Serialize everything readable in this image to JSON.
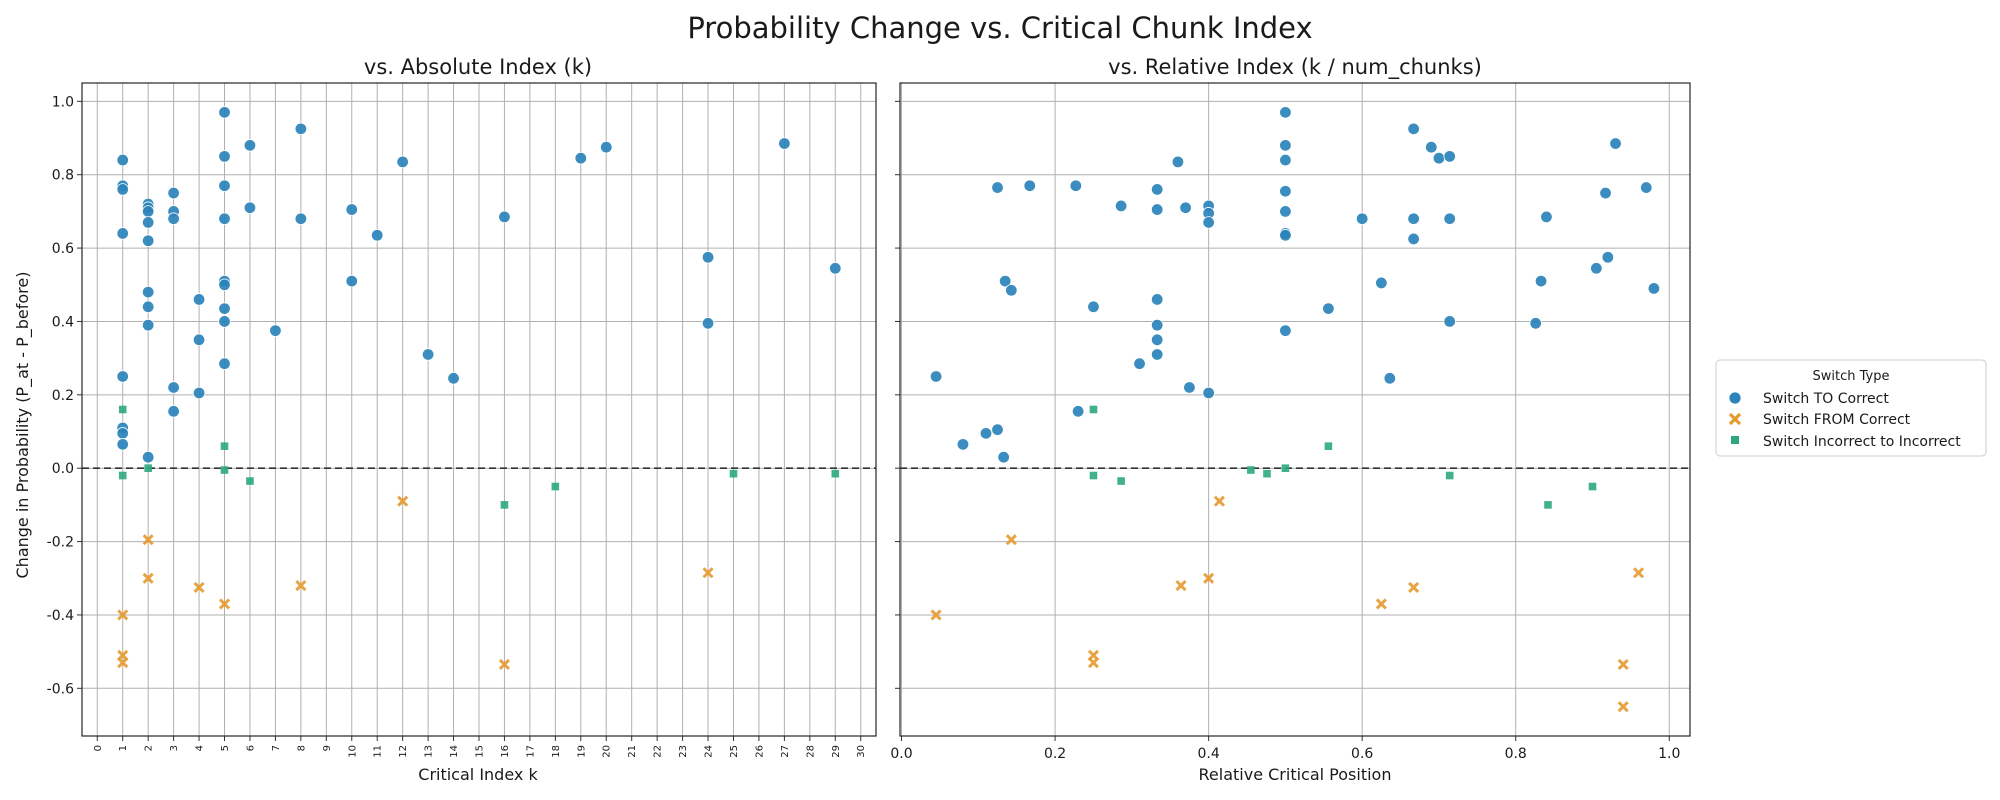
{
  "figure_title": "Probability Change vs. Critical Chunk Index",
  "legend": {
    "title": "Switch Type",
    "entries": [
      {
        "label": "Switch TO Correct",
        "marker": "circle",
        "color": "#2b83ba"
      },
      {
        "label": "Switch FROM Correct",
        "marker": "x",
        "color": "#e69a2e"
      },
      {
        "label": "Switch Incorrect to Incorrect",
        "marker": "square",
        "color": "#2ca87f"
      }
    ]
  },
  "chart_data": [
    {
      "type": "scatter",
      "title": "vs. Absolute Index (k)",
      "xlabel": "Critical Index k",
      "ylabel": "Change in Probability (P_at - P_before)",
      "xlim": [
        -0.6,
        30.6
      ],
      "ylim": [
        -0.73,
        1.05
      ],
      "xticks": [
        0,
        1,
        2,
        3,
        4,
        5,
        6,
        7,
        8,
        9,
        10,
        11,
        12,
        13,
        14,
        15,
        16,
        17,
        18,
        19,
        20,
        21,
        22,
        23,
        24,
        25,
        26,
        27,
        28,
        29,
        30
      ],
      "yticks": [
        -0.6,
        -0.4,
        -0.2,
        0.0,
        0.2,
        0.4,
        0.6,
        0.8,
        1.0
      ],
      "grid": true,
      "reference_line_y": 0,
      "series": [
        {
          "name": "Switch TO Correct",
          "points": [
            [
              1,
              0.84
            ],
            [
              1,
              0.77
            ],
            [
              1,
              0.76
            ],
            [
              1,
              0.64
            ],
            [
              1,
              0.25
            ],
            [
              1,
              0.11
            ],
            [
              1,
              0.095
            ],
            [
              1,
              0.065
            ],
            [
              2,
              0.72
            ],
            [
              2,
              0.71
            ],
            [
              2,
              0.7
            ],
            [
              2,
              0.67
            ],
            [
              2,
              0.62
            ],
            [
              2,
              0.48
            ],
            [
              2,
              0.44
            ],
            [
              2,
              0.39
            ],
            [
              2,
              0.03
            ],
            [
              3,
              0.75
            ],
            [
              3,
              0.7
            ],
            [
              3,
              0.68
            ],
            [
              3,
              0.22
            ],
            [
              3,
              0.155
            ],
            [
              4,
              0.46
            ],
            [
              4,
              0.35
            ],
            [
              4,
              0.205
            ],
            [
              5,
              0.97
            ],
            [
              5,
              0.85
            ],
            [
              5,
              0.77
            ],
            [
              5,
              0.68
            ],
            [
              5,
              0.51
            ],
            [
              5,
              0.5
            ],
            [
              5,
              0.435
            ],
            [
              5,
              0.4
            ],
            [
              5,
              0.285
            ],
            [
              6,
              0.88
            ],
            [
              6,
              0.71
            ],
            [
              7,
              0.375
            ],
            [
              8,
              0.925
            ],
            [
              8,
              0.68
            ],
            [
              10,
              0.705
            ],
            [
              10,
              0.51
            ],
            [
              11,
              0.635
            ],
            [
              12,
              0.835
            ],
            [
              13,
              0.31
            ],
            [
              14,
              0.245
            ],
            [
              16,
              0.685
            ],
            [
              19,
              0.845
            ],
            [
              20,
              0.875
            ],
            [
              24,
              0.575
            ],
            [
              24,
              0.395
            ],
            [
              27,
              0.885
            ],
            [
              29,
              0.545
            ]
          ]
        },
        {
          "name": "Switch FROM Correct",
          "points": [
            [
              1,
              -0.4
            ],
            [
              1,
              -0.51
            ],
            [
              1,
              -0.53
            ],
            [
              2,
              -0.195
            ],
            [
              2,
              -0.3
            ],
            [
              4,
              -0.325
            ],
            [
              5,
              -0.37
            ],
            [
              8,
              -0.32
            ],
            [
              12,
              -0.09
            ],
            [
              16,
              -0.535
            ],
            [
              24,
              -0.285
            ]
          ]
        },
        {
          "name": "Switch Incorrect to Incorrect",
          "points": [
            [
              1,
              0.16
            ],
            [
              1,
              -0.02
            ],
            [
              2,
              0.0
            ],
            [
              5,
              0.06
            ],
            [
              5,
              -0.005
            ],
            [
              6,
              -0.035
            ],
            [
              16,
              -0.1
            ],
            [
              18,
              -0.05
            ],
            [
              25,
              -0.015
            ],
            [
              29,
              -0.015
            ]
          ]
        }
      ]
    },
    {
      "type": "scatter",
      "title": "vs. Relative Index (k / num_chunks)",
      "xlabel": "Relative Critical Position",
      "ylabel": "",
      "xlim": [
        -0.002,
        1.027
      ],
      "ylim": [
        -0.73,
        1.05
      ],
      "xticks": [
        0.0,
        0.2,
        0.4,
        0.6,
        0.8,
        1.0
      ],
      "yticks": [
        -0.6,
        -0.4,
        -0.2,
        0.0,
        0.2,
        0.4,
        0.6,
        0.8,
        1.0
      ],
      "grid": true,
      "reference_line_y": 0,
      "series": [
        {
          "name": "Switch TO Correct",
          "points": [
            [
              0.045,
              0.25
            ],
            [
              0.08,
              0.065
            ],
            [
              0.11,
              0.095
            ],
            [
              0.125,
              0.765
            ],
            [
              0.125,
              0.105
            ],
            [
              0.133,
              0.03
            ],
            [
              0.135,
              0.51
            ],
            [
              0.143,
              0.485
            ],
            [
              0.167,
              0.77
            ],
            [
              0.227,
              0.77
            ],
            [
              0.23,
              0.155
            ],
            [
              0.25,
              0.44
            ],
            [
              0.286,
              0.715
            ],
            [
              0.31,
              0.285
            ],
            [
              0.333,
              0.76
            ],
            [
              0.333,
              0.705
            ],
            [
              0.333,
              0.46
            ],
            [
              0.333,
              0.39
            ],
            [
              0.333,
              0.35
            ],
            [
              0.333,
              0.31
            ],
            [
              0.36,
              0.835
            ],
            [
              0.37,
              0.71
            ],
            [
              0.375,
              0.22
            ],
            [
              0.4,
              0.715
            ],
            [
              0.4,
              0.695
            ],
            [
              0.4,
              0.67
            ],
            [
              0.4,
              0.205
            ],
            [
              0.5,
              0.97
            ],
            [
              0.5,
              0.88
            ],
            [
              0.5,
              0.84
            ],
            [
              0.5,
              0.755
            ],
            [
              0.5,
              0.7
            ],
            [
              0.5,
              0.64
            ],
            [
              0.5,
              0.635
            ],
            [
              0.5,
              0.375
            ],
            [
              0.556,
              0.435
            ],
            [
              0.6,
              0.68
            ],
            [
              0.625,
              0.505
            ],
            [
              0.636,
              0.245
            ],
            [
              0.667,
              0.925
            ],
            [
              0.667,
              0.68
            ],
            [
              0.667,
              0.625
            ],
            [
              0.69,
              0.875
            ],
            [
              0.7,
              0.845
            ],
            [
              0.714,
              0.85
            ],
            [
              0.714,
              0.68
            ],
            [
              0.714,
              0.4
            ],
            [
              0.826,
              0.395
            ],
            [
              0.833,
              0.51
            ],
            [
              0.84,
              0.685
            ],
            [
              0.905,
              0.545
            ],
            [
              0.917,
              0.75
            ],
            [
              0.92,
              0.575
            ],
            [
              0.93,
              0.885
            ],
            [
              0.97,
              0.765
            ],
            [
              0.98,
              0.49
            ]
          ]
        },
        {
          "name": "Switch FROM Correct",
          "points": [
            [
              0.045,
              -0.4
            ],
            [
              0.143,
              -0.195
            ],
            [
              0.25,
              -0.51
            ],
            [
              0.25,
              -0.53
            ],
            [
              0.364,
              -0.32
            ],
            [
              0.4,
              -0.3
            ],
            [
              0.414,
              -0.09
            ],
            [
              0.625,
              -0.37
            ],
            [
              0.667,
              -0.325
            ],
            [
              0.94,
              -0.535
            ],
            [
              0.94,
              -0.65
            ],
            [
              0.96,
              -0.285
            ]
          ]
        },
        {
          "name": "Switch Incorrect to Incorrect",
          "points": [
            [
              0.25,
              0.16
            ],
            [
              0.25,
              -0.02
            ],
            [
              0.286,
              -0.035
            ],
            [
              0.455,
              -0.005
            ],
            [
              0.476,
              -0.015
            ],
            [
              0.5,
              0.0
            ],
            [
              0.556,
              0.06
            ],
            [
              0.714,
              -0.02
            ],
            [
              0.842,
              -0.1
            ],
            [
              0.9,
              -0.05
            ]
          ]
        }
      ]
    }
  ]
}
